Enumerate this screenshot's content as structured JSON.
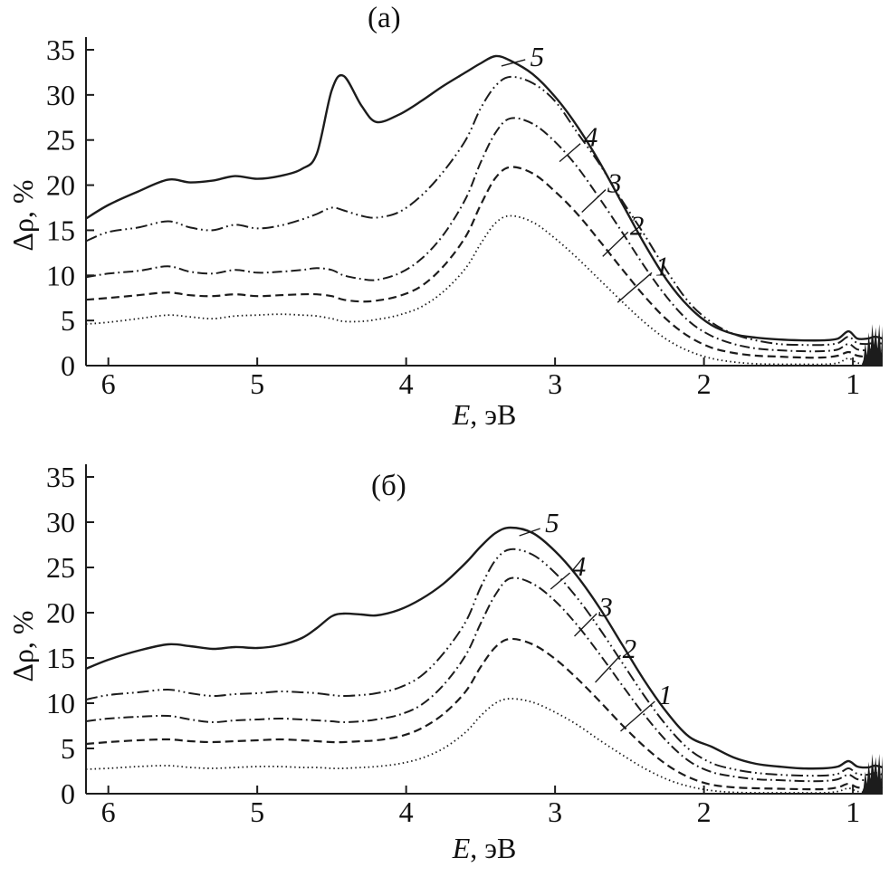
{
  "colors": {
    "line": "#1c1c1c",
    "text": "#111111"
  },
  "panels": [
    {
      "title": "(a)",
      "ylabel": "Δρ, %",
      "xlabel_var": "E",
      "xlabel_unit": ", эВ"
    },
    {
      "title": "(б)",
      "ylabel": "Δρ, %",
      "xlabel_var": "E",
      "xlabel_unit": ", эВ"
    }
  ],
  "chart_data": [
    {
      "type": "line",
      "title": "(a)",
      "xlabel": "E, эВ",
      "ylabel": "Δρ, %",
      "xlim": [
        6.15,
        0.8
      ],
      "ylim": [
        0,
        35
      ],
      "x_axis_reversed": true,
      "grid": false,
      "x_ticks": [
        6,
        5,
        4,
        3,
        2,
        1
      ],
      "y_ticks": [
        0,
        5,
        10,
        15,
        20,
        25,
        30,
        35
      ],
      "x": [
        6.15,
        6.0,
        5.8,
        5.6,
        5.45,
        5.3,
        5.15,
        5.0,
        4.85,
        4.7,
        4.6,
        4.5,
        4.42,
        4.3,
        4.2,
        4.05,
        3.9,
        3.75,
        3.6,
        3.5,
        3.4,
        3.3,
        3.15,
        3.0,
        2.85,
        2.7,
        2.55,
        2.4,
        2.25,
        2.1,
        1.95,
        1.8,
        1.65,
        1.5,
        1.35,
        1.2,
        1.1,
        1.03,
        0.97,
        0.9,
        0.85,
        0.8
      ],
      "series": [
        {
          "name": "1",
          "style": "dotted",
          "y": [
            4.6,
            4.8,
            5.2,
            5.6,
            5.4,
            5.2,
            5.5,
            5.6,
            5.7,
            5.6,
            5.5,
            5.2,
            4.9,
            4.9,
            5.1,
            5.6,
            6.5,
            8.2,
            10.8,
            13.5,
            15.8,
            16.6,
            15.9,
            14.1,
            11.9,
            9.5,
            7.1,
            4.8,
            2.9,
            1.6,
            0.8,
            0.4,
            0.2,
            0.15,
            0.15,
            0.15,
            0.3,
            0.8,
            0.3,
            0.2,
            0.3,
            0.2
          ]
        },
        {
          "name": "2",
          "style": "dashed",
          "y": [
            7.3,
            7.5,
            7.8,
            8.1,
            7.8,
            7.7,
            7.9,
            7.7,
            7.8,
            7.9,
            7.9,
            7.7,
            7.3,
            7.1,
            7.2,
            7.7,
            8.8,
            11.0,
            14.3,
            17.8,
            20.8,
            22.0,
            21.3,
            19.3,
            16.8,
            13.8,
            10.7,
            7.7,
            5.1,
            3.2,
            2.0,
            1.4,
            1.1,
            1.0,
            0.9,
            0.9,
            1.1,
            1.5,
            1.1,
            1.0,
            1.2,
            1.0
          ]
        },
        {
          "name": "3",
          "style": "dashdot",
          "y": [
            9.8,
            10.2,
            10.5,
            11.0,
            10.4,
            10.2,
            10.6,
            10.3,
            10.4,
            10.6,
            10.8,
            10.6,
            10.0,
            9.6,
            9.5,
            10.2,
            11.8,
            14.5,
            18.5,
            22.5,
            25.8,
            27.4,
            26.8,
            24.8,
            22.0,
            18.5,
            14.8,
            11.0,
            7.6,
            4.9,
            3.3,
            2.4,
            1.9,
            1.7,
            1.6,
            1.6,
            1.8,
            2.4,
            1.8,
            1.7,
            1.9,
            1.7
          ]
        },
        {
          "name": "4",
          "style": "dashdotdot",
          "y": [
            13.8,
            14.8,
            15.3,
            16.0,
            15.3,
            15.0,
            15.6,
            15.2,
            15.5,
            16.2,
            16.8,
            17.5,
            17.2,
            16.6,
            16.4,
            17.0,
            18.8,
            21.5,
            25.0,
            28.5,
            31.0,
            32.0,
            31.3,
            29.3,
            25.8,
            22.3,
            18.3,
            14.5,
            10.5,
            7.0,
            4.8,
            3.5,
            2.8,
            2.4,
            2.3,
            2.3,
            2.5,
            3.2,
            2.5,
            2.4,
            2.6,
            2.4
          ]
        },
        {
          "name": "5",
          "style": "solid",
          "y": [
            16.3,
            17.8,
            19.3,
            20.6,
            20.3,
            20.5,
            21.0,
            20.7,
            21.0,
            21.8,
            23.5,
            30.5,
            32.1,
            28.8,
            27.0,
            27.8,
            29.3,
            31.0,
            32.5,
            33.5,
            34.3,
            33.8,
            32.3,
            29.8,
            26.5,
            22.5,
            18.0,
            13.5,
            9.5,
            6.5,
            4.5,
            3.5,
            3.1,
            2.9,
            2.8,
            2.8,
            3.0,
            3.8,
            3.0,
            3.0,
            3.2,
            3.0
          ]
        }
      ],
      "annotations": [
        {
          "label": "5",
          "text_at": [
            3.12,
            34.3
          ],
          "line_from": [
            3.2,
            33.9
          ],
          "line_to": [
            3.36,
            33.2
          ]
        },
        {
          "label": "4",
          "text_at": [
            2.76,
            25.4
          ],
          "line_from": [
            2.83,
            24.6
          ],
          "line_to": [
            2.97,
            22.6
          ]
        },
        {
          "label": "3",
          "text_at": [
            2.6,
            20.3
          ],
          "line_from": [
            2.66,
            19.5
          ],
          "line_to": [
            2.82,
            17.0
          ]
        },
        {
          "label": "2",
          "text_at": [
            2.45,
            15.6
          ],
          "line_from": [
            2.51,
            14.8
          ],
          "line_to": [
            2.68,
            12.1
          ]
        },
        {
          "label": "1",
          "text_at": [
            2.28,
            11.1
          ],
          "line_from": [
            2.35,
            10.3
          ],
          "line_to": [
            2.58,
            7.0
          ]
        }
      ],
      "edge_artifact": {
        "x_from": 0.94,
        "x_to": 0.8,
        "y_max": 4.6
      }
    },
    {
      "type": "line",
      "title": "(б)",
      "xlabel": "E, эВ",
      "ylabel": "Δρ, %",
      "xlim": [
        6.15,
        0.8
      ],
      "ylim": [
        0,
        35
      ],
      "x_axis_reversed": true,
      "grid": false,
      "x_ticks": [
        6,
        5,
        4,
        3,
        2,
        1
      ],
      "y_ticks": [
        0,
        5,
        10,
        15,
        20,
        25,
        30,
        35
      ],
      "x": [
        6.15,
        6.0,
        5.8,
        5.6,
        5.45,
        5.3,
        5.15,
        5.0,
        4.85,
        4.7,
        4.6,
        4.5,
        4.42,
        4.3,
        4.2,
        4.05,
        3.9,
        3.75,
        3.6,
        3.5,
        3.4,
        3.3,
        3.15,
        3.0,
        2.85,
        2.7,
        2.55,
        2.4,
        2.25,
        2.1,
        1.95,
        1.8,
        1.65,
        1.5,
        1.35,
        1.2,
        1.1,
        1.03,
        0.97,
        0.9,
        0.85,
        0.8
      ],
      "series": [
        {
          "name": "1",
          "style": "dotted",
          "y": [
            2.7,
            2.8,
            3.0,
            3.1,
            2.9,
            2.8,
            2.9,
            3.0,
            3.0,
            2.9,
            2.9,
            2.8,
            2.8,
            2.9,
            3.0,
            3.3,
            3.9,
            5.0,
            6.8,
            8.6,
            10.0,
            10.5,
            10.1,
            9.0,
            7.6,
            5.9,
            4.3,
            2.8,
            1.6,
            0.8,
            0.35,
            0.15,
            0.1,
            0.1,
            0.1,
            0.1,
            0.25,
            0.6,
            0.25,
            0.15,
            0.25,
            0.15
          ]
        },
        {
          "name": "2",
          "style": "dashed",
          "y": [
            5.5,
            5.7,
            5.9,
            6.0,
            5.8,
            5.7,
            5.8,
            5.9,
            6.0,
            5.9,
            5.8,
            5.7,
            5.7,
            5.8,
            5.9,
            6.3,
            7.2,
            8.8,
            11.3,
            14.0,
            16.2,
            17.1,
            16.5,
            14.9,
            12.7,
            10.2,
            7.6,
            5.2,
            3.2,
            1.8,
            1.0,
            0.7,
            0.6,
            0.55,
            0.5,
            0.5,
            0.7,
            1.1,
            0.7,
            0.6,
            0.8,
            0.6
          ]
        },
        {
          "name": "3",
          "style": "dashdot",
          "y": [
            8.0,
            8.3,
            8.5,
            8.6,
            8.2,
            7.9,
            8.1,
            8.2,
            8.3,
            8.2,
            8.1,
            8.0,
            7.9,
            8.0,
            8.2,
            8.7,
            9.8,
            12.0,
            15.3,
            18.8,
            22.0,
            23.8,
            23.2,
            21.3,
            18.6,
            15.4,
            12.0,
            8.7,
            5.8,
            3.6,
            2.4,
            1.9,
            1.6,
            1.5,
            1.4,
            1.4,
            1.6,
            2.1,
            1.6,
            1.5,
            1.7,
            1.5
          ]
        },
        {
          "name": "4",
          "style": "dashdotdot",
          "y": [
            10.4,
            10.9,
            11.2,
            11.5,
            11.1,
            10.8,
            11.0,
            11.1,
            11.3,
            11.2,
            11.1,
            10.9,
            10.8,
            10.9,
            11.1,
            11.7,
            13.0,
            15.5,
            19.0,
            22.8,
            25.8,
            27.0,
            26.4,
            24.4,
            21.6,
            18.2,
            14.5,
            10.8,
            7.5,
            4.9,
            3.4,
            2.7,
            2.3,
            2.1,
            2.0,
            2.0,
            2.2,
            2.8,
            2.2,
            2.1,
            2.3,
            2.1
          ]
        },
        {
          "name": "5",
          "style": "solid",
          "y": [
            13.8,
            14.8,
            15.8,
            16.5,
            16.3,
            16.0,
            16.2,
            16.1,
            16.4,
            17.2,
            18.3,
            19.6,
            19.9,
            19.8,
            19.7,
            20.3,
            21.5,
            23.2,
            25.5,
            27.3,
            28.8,
            29.4,
            28.8,
            26.8,
            24.0,
            20.5,
            16.5,
            12.5,
            9.0,
            6.3,
            5.2,
            4.0,
            3.3,
            3.0,
            2.8,
            2.8,
            3.0,
            3.6,
            3.0,
            2.9,
            3.1,
            2.9
          ]
        }
      ],
      "annotations": [
        {
          "label": "5",
          "text_at": [
            3.02,
            30.0
          ],
          "line_from": [
            3.1,
            29.3
          ],
          "line_to": [
            3.24,
            28.5
          ]
        },
        {
          "label": "4",
          "text_at": [
            2.84,
            25.2
          ],
          "line_from": [
            2.9,
            24.4
          ],
          "line_to": [
            3.03,
            22.6
          ]
        },
        {
          "label": "3",
          "text_at": [
            2.66,
            20.7
          ],
          "line_from": [
            2.72,
            19.9
          ],
          "line_to": [
            2.87,
            17.4
          ]
        },
        {
          "label": "2",
          "text_at": [
            2.5,
            16.1
          ],
          "line_from": [
            2.56,
            15.3
          ],
          "line_to": [
            2.73,
            12.3
          ]
        },
        {
          "label": "1",
          "text_at": [
            2.26,
            11.0
          ],
          "line_from": [
            2.33,
            10.2
          ],
          "line_to": [
            2.56,
            6.9
          ]
        }
      ],
      "edge_artifact": {
        "x_from": 0.94,
        "x_to": 0.8,
        "y_max": 4.4
      }
    }
  ]
}
